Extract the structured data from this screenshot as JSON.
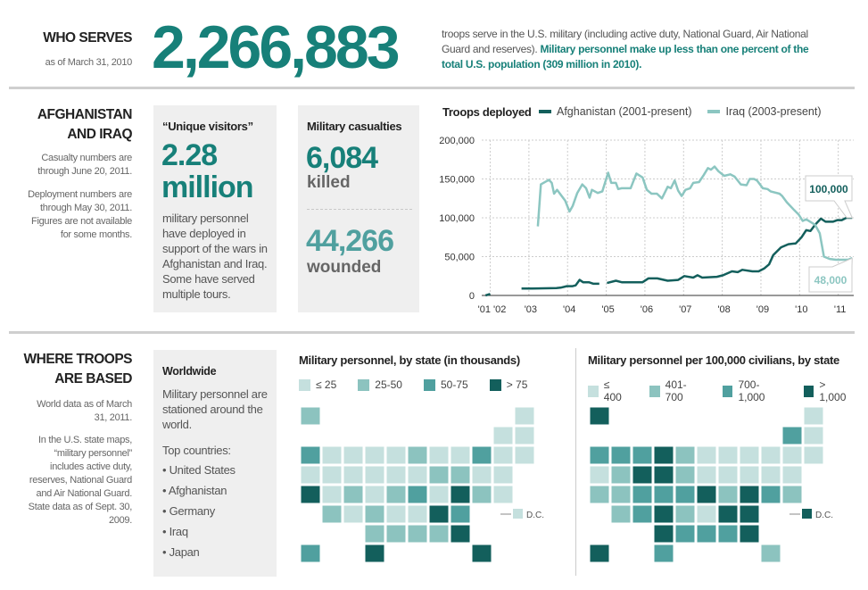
{
  "who_serves": {
    "heading": "WHO SERVES",
    "as_of": "as of March 31, 2010",
    "total": "2,266,883",
    "desc_plain": "troops serve in the U.S. military (including active duty, National Guard, Air National Guard and reserves).",
    "desc_highlight": "Military personnel make up less than one percent of the total U.S. population (309 million in 2010)."
  },
  "afghan_iraq": {
    "heading_line1": "AFGHANISTAN",
    "heading_line2": "AND IRAQ",
    "note1": "Casualty numbers are through June 20, 2011.",
    "note2": "Deployment numbers are through May 30, 2011. Figures are not available for some months.",
    "visitors": {
      "title": "“Unique visitors”",
      "value_line1": "2.28",
      "value_line2": "million",
      "desc": "military personnel have deployed in support of the wars in Afghanistan and Iraq. Some have served multiple tours."
    },
    "casualties": {
      "title": "Military casualties",
      "killed_value": "6,084",
      "killed_label": "killed",
      "wounded_value": "44,266",
      "wounded_label": "wounded"
    }
  },
  "chart_data": {
    "type": "line",
    "title": "Troops deployed",
    "xlabel": "",
    "ylabel": "",
    "xlim": [
      2001.78,
      2011.4
    ],
    "ylim": [
      0,
      200000
    ],
    "grid": true,
    "legend_placement": "top",
    "x_ticks": [
      2002,
      2003,
      2004,
      2005,
      2006,
      2007,
      2008,
      2009,
      2010,
      2011
    ],
    "x_tick_labels": [
      "'01 '02",
      "'03",
      "'04",
      "'05",
      "'06",
      "'07",
      "'08",
      "'09",
      "'10",
      "'11"
    ],
    "y_ticks": [
      0,
      50000,
      100000,
      150000,
      200000
    ],
    "y_tick_labels": [
      "0",
      "50,000",
      "100,000",
      "150,000",
      "200,000"
    ],
    "series": [
      {
        "name": "Afghanistan (2001-present)",
        "color": "#135f5c",
        "end_label": "100,000",
        "points": [
          [
            2001.88,
            0
          ],
          [
            2002.0,
            2000
          ],
          null,
          [
            2002.81,
            9000
          ],
          [
            2003.09,
            9000
          ],
          [
            2003.71,
            9500
          ],
          [
            2003.82,
            10000
          ],
          [
            2003.98,
            12000
          ],
          [
            2004.13,
            12000
          ],
          [
            2004.21,
            13000
          ],
          [
            2004.31,
            20000
          ],
          [
            2004.4,
            17000
          ],
          [
            2004.55,
            17000
          ],
          [
            2004.67,
            15000
          ],
          [
            2004.82,
            15000
          ],
          null,
          [
            2005.02,
            16000
          ],
          [
            2005.25,
            19000
          ],
          [
            2005.4,
            17000
          ],
          [
            2005.94,
            17000
          ],
          [
            2006.09,
            22000
          ],
          [
            2006.32,
            22000
          ],
          [
            2006.59,
            19000
          ],
          [
            2006.86,
            20000
          ],
          [
            2007.02,
            25000
          ],
          [
            2007.25,
            23000
          ],
          [
            2007.36,
            26000
          ],
          [
            2007.48,
            23000
          ],
          [
            2007.86,
            24000
          ],
          [
            2008.02,
            26000
          ],
          [
            2008.25,
            31000
          ],
          [
            2008.4,
            30000
          ],
          [
            2008.52,
            33000
          ],
          [
            2008.78,
            31000
          ],
          [
            2008.94,
            31000
          ],
          [
            2009.09,
            35000
          ],
          [
            2009.21,
            40000
          ],
          [
            2009.32,
            52000
          ],
          [
            2009.52,
            62000
          ],
          [
            2009.71,
            66000
          ],
          [
            2009.9,
            67000
          ],
          [
            2010.05,
            75000
          ],
          [
            2010.17,
            84000
          ],
          [
            2010.28,
            83000
          ],
          [
            2010.4,
            91000
          ],
          [
            2010.55,
            99000
          ],
          [
            2010.67,
            95000
          ],
          [
            2010.86,
            95000
          ],
          [
            2010.98,
            97000
          ],
          [
            2011.09,
            97000
          ],
          [
            2011.21,
            100000
          ],
          [
            2011.36,
            100000
          ]
        ]
      },
      {
        "name": "Iraq (2003-present)",
        "color": "#8cc6c1",
        "end_label": "48,000",
        "points": [
          [
            2003.23,
            89000
          ],
          [
            2003.31,
            143000
          ],
          [
            2003.52,
            149000
          ],
          [
            2003.59,
            145000
          ],
          [
            2003.65,
            131000
          ],
          [
            2003.73,
            136000
          ],
          [
            2003.94,
            122000
          ],
          [
            2004.05,
            108000
          ],
          [
            2004.13,
            115000
          ],
          [
            2004.25,
            132000
          ],
          [
            2004.38,
            143000
          ],
          [
            2004.48,
            138000
          ],
          [
            2004.57,
            126000
          ],
          [
            2004.63,
            136000
          ],
          [
            2004.78,
            132000
          ],
          [
            2004.9,
            134000
          ],
          [
            2005.05,
            158000
          ],
          [
            2005.13,
            145000
          ],
          [
            2005.25,
            145000
          ],
          [
            2005.31,
            137000
          ],
          [
            2005.4,
            138000
          ],
          [
            2005.63,
            138000
          ],
          [
            2005.78,
            157000
          ],
          [
            2005.94,
            152000
          ],
          [
            2006.05,
            136000
          ],
          [
            2006.17,
            131000
          ],
          [
            2006.31,
            131000
          ],
          [
            2006.44,
            125000
          ],
          [
            2006.59,
            140000
          ],
          [
            2006.67,
            138000
          ],
          [
            2006.77,
            148000
          ],
          [
            2006.86,
            135000
          ],
          [
            2006.95,
            128000
          ],
          [
            2007.05,
            136000
          ],
          [
            2007.17,
            138000
          ],
          [
            2007.25,
            145000
          ],
          [
            2007.4,
            146000
          ],
          [
            2007.52,
            155000
          ],
          [
            2007.63,
            164000
          ],
          [
            2007.71,
            162000
          ],
          [
            2007.8,
            166000
          ],
          [
            2007.9,
            160000
          ],
          [
            2008.05,
            154000
          ],
          [
            2008.21,
            156000
          ],
          [
            2008.32,
            153000
          ],
          [
            2008.48,
            143000
          ],
          [
            2008.63,
            142000
          ],
          [
            2008.71,
            150000
          ],
          [
            2008.82,
            150000
          ],
          [
            2008.9,
            148000
          ],
          [
            2009.05,
            138000
          ],
          [
            2009.17,
            137000
          ],
          [
            2009.25,
            134000
          ],
          [
            2009.48,
            131000
          ],
          [
            2009.55,
            128000
          ],
          [
            2009.67,
            120000
          ],
          [
            2009.86,
            110000
          ],
          [
            2009.98,
            104000
          ],
          [
            2010.08,
            96000
          ],
          [
            2010.17,
            98000
          ],
          [
            2010.4,
            91000
          ],
          [
            2010.52,
            80000
          ],
          [
            2010.63,
            50000
          ],
          [
            2010.78,
            47000
          ],
          [
            2010.94,
            46000
          ],
          [
            2011.25,
            46000
          ],
          [
            2011.36,
            48000
          ]
        ]
      }
    ]
  },
  "where_based": {
    "heading_line1": "WHERE TROOPS",
    "heading_line2": "ARE BASED",
    "note1": "World data as of March 31, 2011.",
    "note2": "In the U.S. state maps, “military personnel” includes active duty, reserves, National Guard and Air National Guard. State data as of Sept. 30, 2009.",
    "worldwide": {
      "title": "Worldwide",
      "desc": "Military personnel are stationed around the world.",
      "top_label": "Top countries:",
      "countries": [
        "• United States",
        "• Afghanistan",
        "• Germany",
        "• Iraq",
        "• Japan"
      ]
    }
  },
  "maps": {
    "colors": [
      "#c5e0de",
      "#8cc3bf",
      "#50a09f",
      "#135f5c"
    ],
    "dc_label": "D.C.",
    "by_state": {
      "title": "Military personnel, by state (in thousands)",
      "legend": [
        "≤ 25",
        "25-50",
        "50-75",
        "> 75"
      ],
      "classes": {
        "WA": 2,
        "OR": 0,
        "CA": 3,
        "NV": 0,
        "ID": 0,
        "MT": 0,
        "WY": 0,
        "UT": 0,
        "CO": 1,
        "AZ": 1,
        "NM": 0,
        "ND": 0,
        "SD": 0,
        "NE": 0,
        "KS": 1,
        "OK": 1,
        "TX": 3,
        "MN": 0,
        "IA": 0,
        "MO": 1,
        "AR": 0,
        "LA": 1,
        "WI": 0,
        "IL": 1,
        "MS": 1,
        "MI": 0,
        "IN": 0,
        "KY": 2,
        "TN": 0,
        "AL": 1,
        "OH": 1,
        "GA": 3,
        "FL": 3,
        "SC": 2,
        "NC": 3,
        "VA": 3,
        "WV": 0,
        "PA": 1,
        "NY": 2,
        "ME": 0,
        "VT": 0,
        "NH": 0,
        "MA": 0,
        "RI": 0,
        "CT": 0,
        "NJ": 0,
        "DE": 0,
        "MD": 1,
        "DC": 0,
        "AK": 1,
        "HI": 2
      }
    },
    "per_capita": {
      "title": "Military personnel per 100,000 civilians, by state",
      "legend": [
        "≤ 400",
        "401-700",
        "700-1,000",
        "> 1,000"
      ],
      "classes": {
        "WA": 2,
        "OR": 0,
        "CA": 1,
        "NV": 1,
        "ID": 2,
        "MT": 2,
        "WY": 3,
        "UT": 1,
        "CO": 2,
        "AZ": 1,
        "NM": 2,
        "ND": 3,
        "SD": 3,
        "NE": 2,
        "KS": 3,
        "OK": 3,
        "TX": 2,
        "MN": 1,
        "IA": 1,
        "MO": 2,
        "AR": 1,
        "LA": 2,
        "WI": 0,
        "IL": 0,
        "MS": 2,
        "MI": 0,
        "IN": 0,
        "KY": 3,
        "TN": 0,
        "AL": 2,
        "OH": 0,
        "GA": 3,
        "FL": 1,
        "SC": 3,
        "NC": 3,
        "VA": 3,
        "WV": 1,
        "PA": 0,
        "NY": 0,
        "ME": 0,
        "VT": 2,
        "NH": 0,
        "MA": 0,
        "RI": 0,
        "CT": 0,
        "NJ": 0,
        "DE": 1,
        "MD": 2,
        "DC": 3,
        "AK": 3,
        "HI": 3
      }
    }
  }
}
